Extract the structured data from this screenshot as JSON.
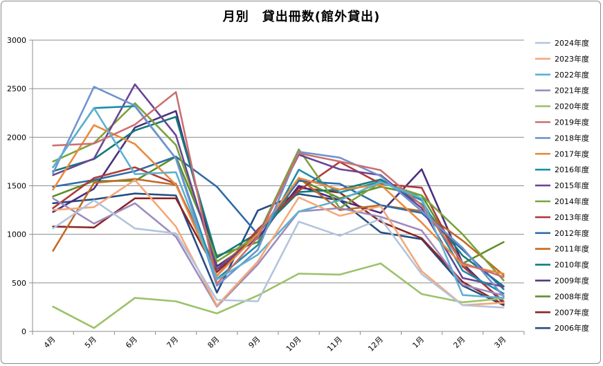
{
  "chart_data": {
    "type": "line",
    "title": "月別　貸出冊数(館外貸出)",
    "xlabel": "",
    "ylabel": "",
    "ylim": [
      0,
      3000
    ],
    "yticks": [
      0,
      500,
      1000,
      1500,
      2000,
      2500,
      3000
    ],
    "grid": true,
    "legend_position": "right",
    "categories": [
      "4月",
      "5月",
      "6月",
      "7月",
      "8月",
      "9月",
      "10月",
      "11月",
      "12月",
      "1月",
      "2月",
      "3月"
    ],
    "series": [
      {
        "name": "2024年度",
        "color": "#b3c4dd",
        "values": [
          1060,
          1350,
          1060,
          1010,
          325,
          310,
          1130,
          985,
          1160,
          590,
          270,
          245
        ]
      },
      {
        "name": "2023年度",
        "color": "#f4a878",
        "values": [
          1250,
          1280,
          1560,
          1080,
          265,
          720,
          1380,
          1190,
          1290,
          620,
          270,
          295
        ]
      },
      {
        "name": "2022年度",
        "color": "#5eb0cf",
        "values": [
          1690,
          2300,
          1620,
          1640,
          535,
          790,
          1235,
          1350,
          1540,
          1370,
          375,
          345
        ]
      },
      {
        "name": "2021年度",
        "color": "#9e8bbd",
        "values": [
          1370,
          1110,
          1320,
          975,
          255,
          690,
          1235,
          1270,
          1180,
          1040,
          480,
          370
        ]
      },
      {
        "name": "2020年度",
        "color": "#9bc26a",
        "values": [
          255,
          35,
          345,
          310,
          185,
          370,
          595,
          585,
          700,
          385,
          300,
          340
        ]
      },
      {
        "name": "2019年度",
        "color": "#cb6f6f",
        "values": [
          1915,
          1935,
          2130,
          2465,
          490,
          970,
          1835,
          1750,
          1660,
          1300,
          705,
          560
        ]
      },
      {
        "name": "2018年度",
        "color": "#6f93cf",
        "values": [
          1630,
          2520,
          2325,
          1780,
          470,
          840,
          1850,
          1790,
          1600,
          1240,
          860,
          360
        ]
      },
      {
        "name": "2017年度",
        "color": "#e88c3e",
        "values": [
          1460,
          2125,
          1930,
          1510,
          570,
          1005,
          1580,
          1460,
          1510,
          1120,
          685,
          595
        ]
      },
      {
        "name": "2016年度",
        "color": "#1b8fa8",
        "values": [
          1690,
          2300,
          2320,
          1780,
          540,
          890,
          1665,
          1430,
          1545,
          1350,
          625,
          390
        ]
      },
      {
        "name": "2015年度",
        "color": "#6b4594",
        "values": [
          1610,
          1780,
          2545,
          2020,
          640,
          980,
          1820,
          1670,
          1610,
          1270,
          550,
          460
        ]
      },
      {
        "name": "2014年度",
        "color": "#7aa33b",
        "values": [
          1750,
          1940,
          2350,
          1920,
          720,
          990,
          1875,
          1270,
          1535,
          1400,
          1000,
          525
        ]
      },
      {
        "name": "2013年度",
        "color": "#b03a3a",
        "values": [
          1270,
          1580,
          1690,
          1520,
          570,
          1050,
          1450,
          1745,
          1520,
          1480,
          670,
          310
        ]
      },
      {
        "name": "2012年度",
        "color": "#2f6ba8",
        "values": [
          1490,
          1560,
          1650,
          1800,
          1490,
          1000,
          1550,
          1520,
          1300,
          1220,
          840,
          435
        ]
      },
      {
        "name": "2011年度",
        "color": "#c06a24",
        "values": [
          830,
          1530,
          1570,
          1510,
          640,
          1010,
          1580,
          1250,
          1300,
          1240,
          935,
          580
        ]
      },
      {
        "name": "2010年度",
        "color": "#137a78",
        "values": [
          1650,
          1775,
          2070,
          2210,
          760,
          1015,
          1435,
          1460,
          1565,
          1310,
          780,
          465
        ]
      },
      {
        "name": "2009年度",
        "color": "#4a2f7d",
        "values": [
          1230,
          1470,
          2100,
          2270,
          670,
          960,
          1500,
          1350,
          1220,
          1670,
          700,
          290
        ]
      },
      {
        "name": "2008年度",
        "color": "#5f8f2b",
        "values": [
          1390,
          1550,
          1550,
          1800,
          780,
          920,
          1570,
          1370,
          1490,
          1400,
          700,
          920
        ]
      },
      {
        "name": "2007年度",
        "color": "#8c2525",
        "values": [
          1080,
          1070,
          1370,
          1370,
          610,
          1020,
          1480,
          1430,
          1130,
          960,
          510,
          275
        ]
      },
      {
        "name": "2006年度",
        "color": "#244d82",
        "values": [
          1320,
          1360,
          1420,
          1400,
          400,
          1245,
          1415,
          1350,
          1020,
          950,
          470,
          270
        ]
      }
    ]
  }
}
